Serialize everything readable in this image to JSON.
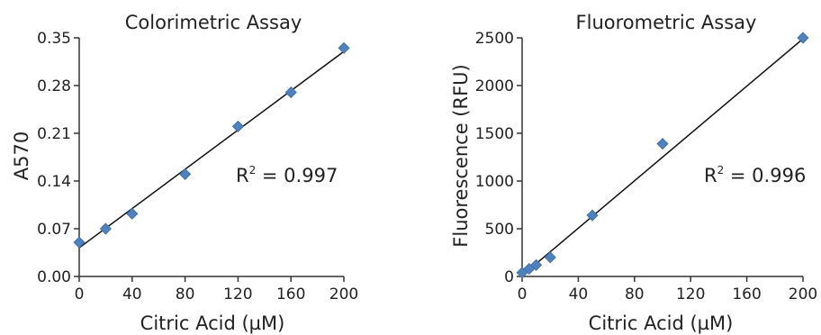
{
  "chart_data": [
    {
      "type": "scatter",
      "title": "Colorimetric Assay",
      "xlabel": "Citric Acid (µM)",
      "ylabel": "A570",
      "xlim": [
        0,
        200
      ],
      "ylim": [
        0,
        0.35
      ],
      "x_ticks": [
        0,
        40,
        80,
        120,
        160,
        200
      ],
      "x_tick_labels": [
        "0",
        "40",
        "80",
        "120",
        "160",
        "200"
      ],
      "y_ticks": [
        0,
        0.07,
        0.14,
        0.21,
        0.28,
        0.35
      ],
      "y_tick_labels": [
        "0.00",
        "0.07",
        "0.14",
        "0.21",
        "0.28",
        "0.35"
      ],
      "series": [
        {
          "points": [
            {
              "x": 0,
              "y": 0.05
            },
            {
              "x": 20,
              "y": 0.07
            },
            {
              "x": 40,
              "y": 0.092
            },
            {
              "x": 80,
              "y": 0.15
            },
            {
              "x": 120,
              "y": 0.22
            },
            {
              "x": 160,
              "y": 0.27
            },
            {
              "x": 200,
              "y": 0.335
            }
          ],
          "color": "#4f81bd",
          "marker": "diamond"
        }
      ],
      "trendline": {
        "x_start": 0,
        "y_start": 0.042,
        "x_end": 200,
        "y_end": 0.33
      },
      "annotation": {
        "base": "R",
        "superscript": "2",
        "rest": " = 0.997"
      },
      "grid": false
    },
    {
      "type": "scatter",
      "title": "Fluorometric Assay",
      "xlabel": "Citric Acid (µM)",
      "ylabel": "Fluorescence (RFU)",
      "xlim": [
        0,
        200
      ],
      "ylim": [
        0,
        2500
      ],
      "x_ticks": [
        0,
        40,
        80,
        120,
        160,
        200
      ],
      "x_tick_labels": [
        "0",
        "40",
        "80",
        "120",
        "160",
        "200"
      ],
      "y_ticks": [
        0,
        500,
        1000,
        1500,
        2000,
        2500
      ],
      "y_tick_labels": [
        "0",
        "500",
        "1000",
        "1500",
        "2000",
        "2500"
      ],
      "series": [
        {
          "points": [
            {
              "x": 0,
              "y": 40
            },
            {
              "x": 5,
              "y": 80
            },
            {
              "x": 10,
              "y": 120
            },
            {
              "x": 20,
              "y": 200
            },
            {
              "x": 50,
              "y": 640
            },
            {
              "x": 100,
              "y": 1390
            },
            {
              "x": 200,
              "y": 2500
            }
          ],
          "color": "#4f81bd",
          "marker": "diamond"
        }
      ],
      "trendline": {
        "x_start": 0,
        "y_start": 10,
        "x_end": 200,
        "y_end": 2490
      },
      "annotation": {
        "base": "R",
        "superscript": "2",
        "rest": " = 0.996"
      },
      "grid": false
    }
  ]
}
